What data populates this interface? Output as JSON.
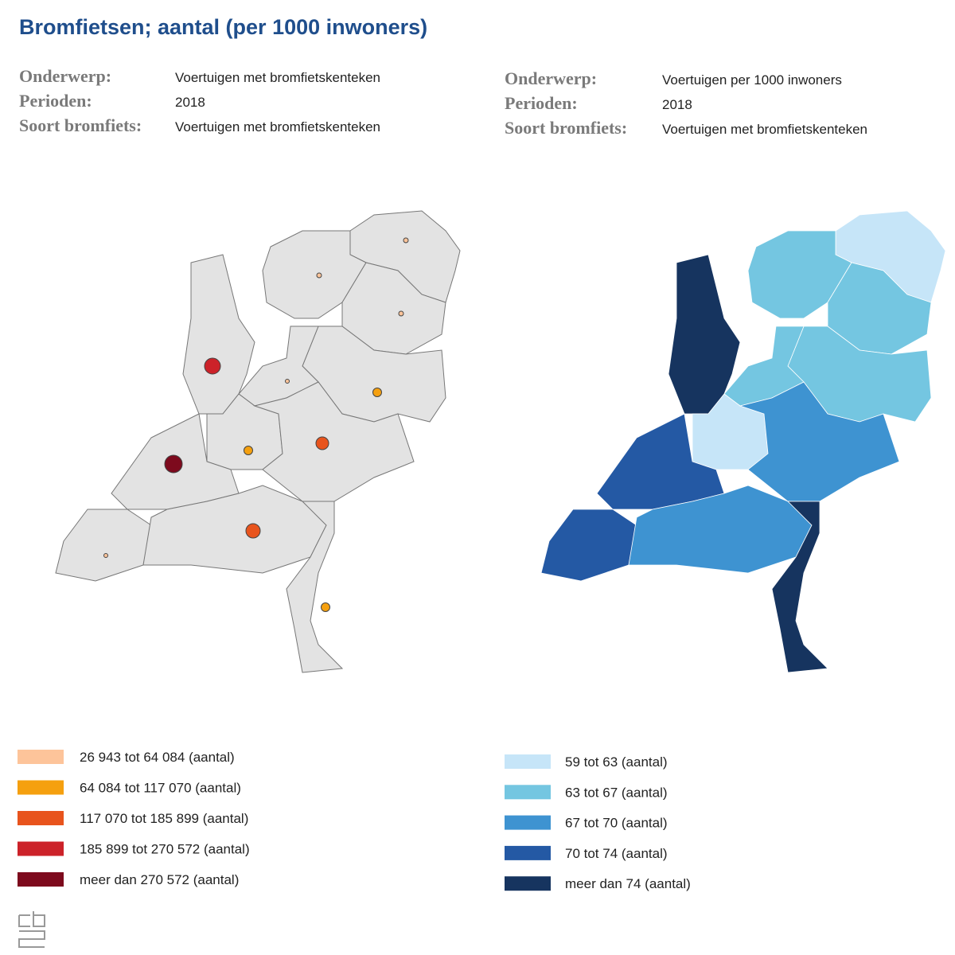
{
  "title": "Bromfietsen; aantal (per 1000 inwoners)",
  "left": {
    "meta": [
      {
        "label": "Onderwerp:",
        "value": "Voertuigen met bromfietskenteken"
      },
      {
        "label": "Perioden:",
        "value": "2018"
      },
      {
        "label": "Soort bromfiets:",
        "value": "Voertuigen met bromfietskenteken"
      }
    ],
    "legend": [
      {
        "label": "26 943 tot 64 084 (aantal)",
        "color": "#fdc49a"
      },
      {
        "label": "64 084 tot 117 070 (aantal)",
        "color": "#f5a00f"
      },
      {
        "label": "117 070 tot 185 899 (aantal)",
        "color": "#e8541d"
      },
      {
        "label": "185 899 tot 270 572 (aantal)",
        "color": "#cc2229"
      },
      {
        "label": "meer dan 270 572 (aantal)",
        "color": "#7d0a1d"
      }
    ]
  },
  "right": {
    "meta": [
      {
        "label": "Onderwerp:",
        "value": "Voertuigen per 1000 inwoners"
      },
      {
        "label": "Perioden:",
        "value": "2018"
      },
      {
        "label": "Soort bromfiets:",
        "value": "Voertuigen met bromfietskenteken"
      }
    ],
    "legend": [
      {
        "label": "59 tot 63 (aantal)",
        "color": "#c6e5f8"
      },
      {
        "label": "63 tot 67 (aantal)",
        "color": "#74c6e1"
      },
      {
        "label": "67 tot 70 (aantal)",
        "color": "#3e93d1"
      },
      {
        "label": "70 tot 74 (aantal)",
        "color": "#2459a4"
      },
      {
        "label": "meer dan 74 (aantal)",
        "color": "#16345f"
      }
    ]
  }
}
